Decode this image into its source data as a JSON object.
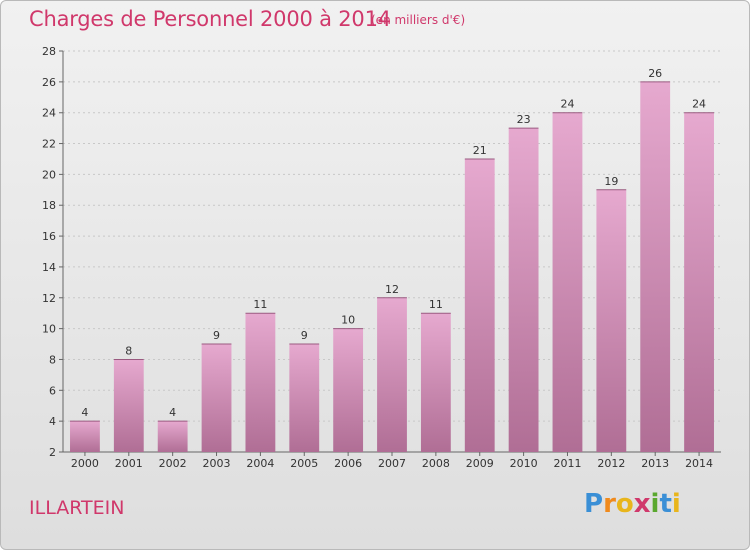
{
  "header": {
    "title": "Charges de Personnel 2000 à 2014",
    "unit": "(en milliers d'€)"
  },
  "footer": {
    "commune": "ILLARTEIN",
    "logo_letters": [
      "P",
      "r",
      "o",
      "x",
      "i",
      "t",
      "i"
    ],
    "logo_colors": [
      "#3a8fd6",
      "#f08a1c",
      "#e8b51c",
      "#d0386b",
      "#5aa82f",
      "#3a8fd6",
      "#e8b51c"
    ]
  },
  "colors": {
    "bar_top": "#e6a9cf",
    "bar_bottom": "#b06e95",
    "title": "#d0386b",
    "grid": "#c8c8c8"
  },
  "chart_data": {
    "type": "bar",
    "title": "Charges de Personnel 2000 à 2014",
    "subtitle": "(en milliers d'€)",
    "categories": [
      "2000",
      "2001",
      "2002",
      "2003",
      "2004",
      "2005",
      "2006",
      "2007",
      "2008",
      "2009",
      "2010",
      "2011",
      "2012",
      "2013",
      "2014"
    ],
    "values": [
      4,
      8,
      4,
      9,
      11,
      9,
      10,
      12,
      11,
      21,
      23,
      24,
      19,
      26,
      24
    ],
    "ylim": [
      2,
      28
    ],
    "yticks": [
      2,
      4,
      6,
      8,
      10,
      12,
      14,
      16,
      18,
      20,
      22,
      24,
      26,
      28
    ],
    "grid": true,
    "xlabel": "",
    "ylabel": ""
  }
}
